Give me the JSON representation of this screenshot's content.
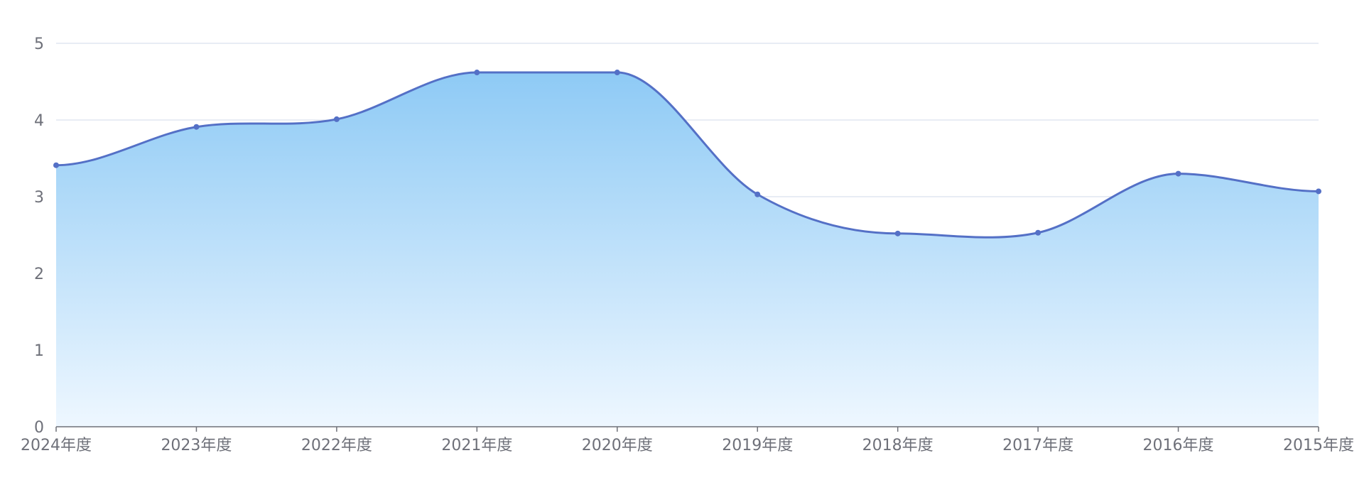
{
  "chart_data": {
    "type": "area",
    "categories": [
      "2024年度",
      "2023年度",
      "2022年度",
      "2021年度",
      "2020年度",
      "2019年度",
      "2018年度",
      "2017年度",
      "2016年度",
      "2015年度"
    ],
    "series": [
      {
        "values": [
          3.41,
          3.91,
          4.01,
          4.62,
          4.62,
          3.03,
          2.52,
          2.53,
          3.3,
          3.07
        ]
      }
    ],
    "ylim": [
      0,
      5
    ],
    "yticks": [
      0,
      1,
      2,
      3,
      4,
      5
    ],
    "title": "",
    "xlabel": "",
    "ylabel": "",
    "grid": true,
    "smooth": true,
    "colors": {
      "line": "#5470c6",
      "area_top": "#8ecaf5",
      "area_bottom": "#eef7ff",
      "grid": "#e0e6f1",
      "axis": "#6e7079",
      "tick_text": "#6e7079"
    }
  }
}
